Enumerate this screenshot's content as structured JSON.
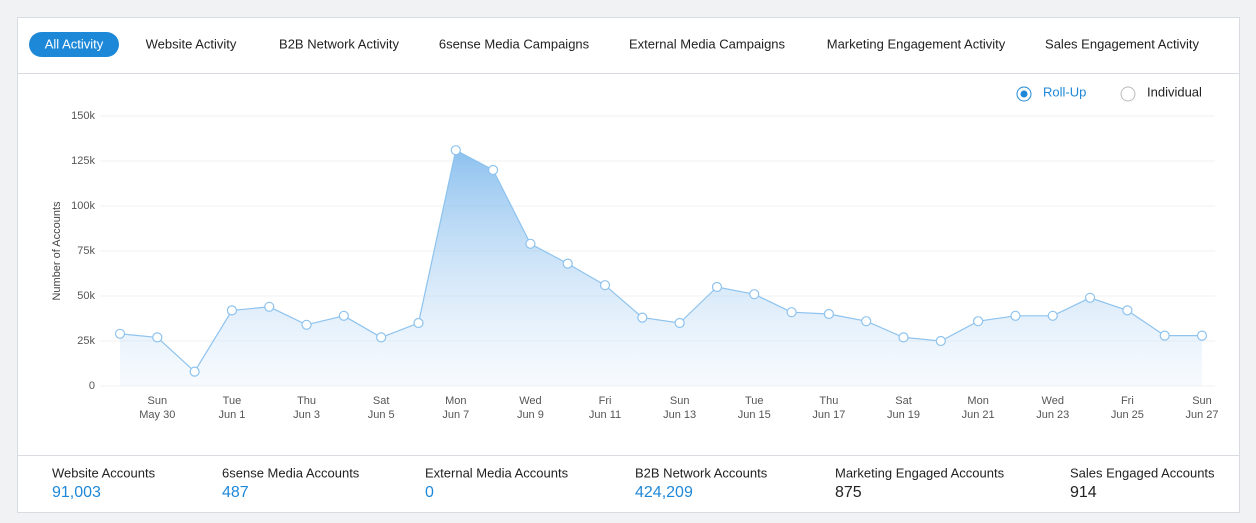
{
  "tabs": {
    "items": [
      "All Activity",
      "Website Activity",
      "B2B Network Activity",
      "6sense Media Campaigns",
      "External Media Campaigns",
      "Marketing Engagement Activity",
      "Sales Engagement Activity"
    ],
    "active": 0
  },
  "toggle": {
    "options": [
      "Roll-Up",
      "Individual"
    ],
    "selected": 0
  },
  "chart_data": {
    "type": "area",
    "y_label": "Number of Accounts",
    "categories": [
      null,
      [
        "Sun",
        "May 30"
      ],
      null,
      [
        "Tue",
        "Jun 1"
      ],
      null,
      [
        "Thu",
        "Jun 3"
      ],
      null,
      [
        "Sat",
        "Jun 5"
      ],
      null,
      [
        "Mon",
        "Jun 7"
      ],
      null,
      [
        "Wed",
        "Jun 9"
      ],
      null,
      [
        "Fri",
        "Jun 11"
      ],
      null,
      [
        "Sun",
        "Jun 13"
      ],
      null,
      [
        "Tue",
        "Jun 15"
      ],
      null,
      [
        "Thu",
        "Jun 17"
      ],
      null,
      [
        "Sat",
        "Jun 19"
      ],
      null,
      [
        "Mon",
        "Jun 21"
      ],
      null,
      [
        "Wed",
        "Jun 23"
      ],
      null,
      [
        "Fri",
        "Jun 25"
      ],
      null,
      [
        "Sun",
        "Jun 27"
      ]
    ],
    "values": [
      29000,
      27000,
      8000,
      42000,
      44000,
      34000,
      39000,
      27000,
      35000,
      131000,
      120000,
      79000,
      68000,
      56000,
      38000,
      35000,
      55000,
      51000,
      41000,
      40000,
      36000,
      27000,
      25000,
      36000,
      39000,
      39000,
      49000,
      42000,
      28000,
      28000
    ],
    "color": "#8ec3ee",
    "ylim": [
      0,
      150000
    ],
    "yticks": [
      0,
      {
        "value": 25000,
        "label": "25k"
      },
      {
        "value": 50000,
        "label": "50k"
      },
      {
        "value": 75000,
        "label": "75k"
      },
      {
        "value": 100000,
        "label": "100k"
      },
      {
        "value": 125000,
        "label": "125k"
      },
      {
        "value": 150000,
        "label": "150k"
      }
    ],
    "grid": true
  },
  "stats": [
    {
      "label": "Website Accounts",
      "value": "91,003",
      "color": "#1e88d8"
    },
    {
      "label": "6sense Media Accounts",
      "value": "487",
      "color": "#1e88d8"
    },
    {
      "label": "External Media Accounts",
      "value": "0",
      "color": "#1e88d8"
    },
    {
      "label": "B2B Network Accounts",
      "value": "424,209",
      "color": "#1e88d8"
    },
    {
      "label": "Marketing Engaged Accounts",
      "value": "875",
      "color": "#222222"
    },
    {
      "label": "Sales Engaged Accounts",
      "value": "914",
      "color": "#222222"
    }
  ]
}
